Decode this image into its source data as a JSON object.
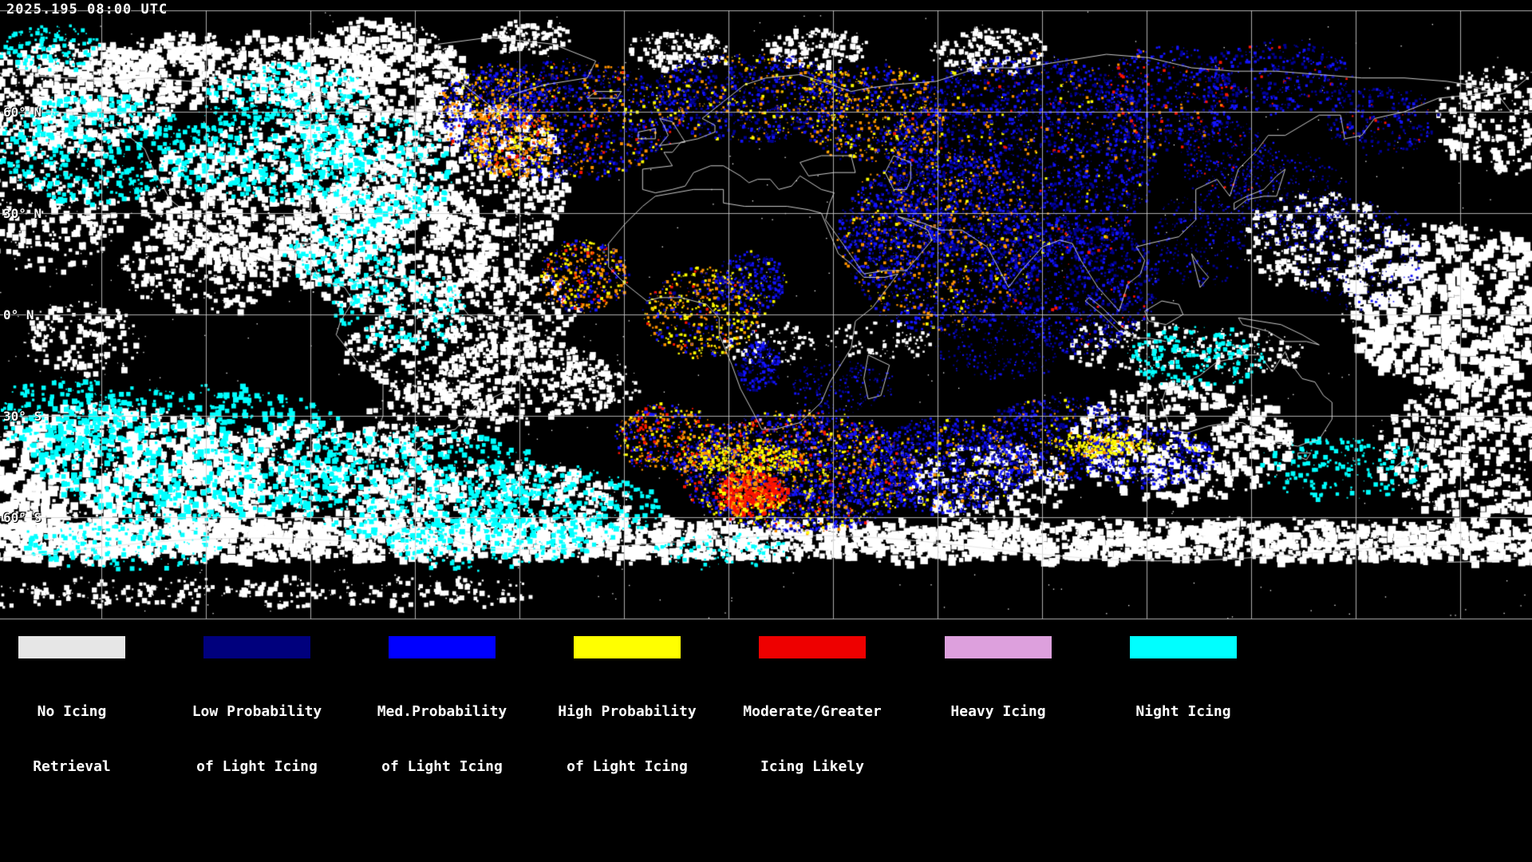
{
  "header": {
    "timestamp": "2025.195 08:00 UTC"
  },
  "map": {
    "latitude_labels": [
      {
        "label": "60° N"
      },
      {
        "label": "30° N"
      },
      {
        "label": "0° N"
      },
      {
        "label": "30° S"
      },
      {
        "label": "60° S"
      }
    ]
  },
  "legend": {
    "items": [
      {
        "line1": "No Icing",
        "line2": "Retrieval",
        "color": "#e6e6e6"
      },
      {
        "line1": "Low Probability",
        "line2": "of Light Icing",
        "color": "#00007d"
      },
      {
        "line1": "Med.Probability",
        "line2": "of Light Icing",
        "color": "#0000ff"
      },
      {
        "line1": "High Probability",
        "line2": "of Light Icing",
        "color": "#ffff00"
      },
      {
        "line1": "Moderate/Greater",
        "line2": "Icing Likely",
        "color": "#ee0000"
      },
      {
        "line1": "Heavy Icing",
        "line2": "",
        "color": "#dda0dd"
      },
      {
        "line1": "Night Icing",
        "line2": "",
        "color": "#00ffff"
      }
    ]
  }
}
